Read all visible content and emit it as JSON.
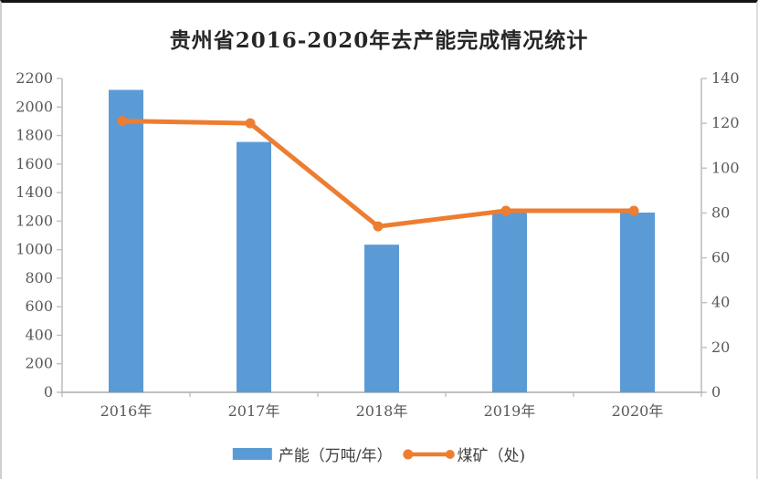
{
  "window": {
    "background": "#ffffff",
    "top_border_color": "#141414"
  },
  "chart_data": {
    "type": "bar+line",
    "title": "贵州省2016-2020年去产能完成情况统计",
    "categories": [
      "2016年",
      "2017年",
      "2018年",
      "2019年",
      "2020年"
    ],
    "series": [
      {
        "name": "产能（万吨/年）",
        "type": "bar",
        "axis": "left",
        "color": "#5B9BD5",
        "values": [
          2120,
          1755,
          1035,
          1270,
          1260
        ]
      },
      {
        "name": "煤矿（处)",
        "type": "line",
        "axis": "right",
        "color": "#ED7D31",
        "values": [
          121,
          120,
          74,
          81,
          81
        ]
      }
    ],
    "left_axis": {
      "min": 0,
      "max": 2200,
      "step": 200,
      "tick_labels": [
        "0",
        "200",
        "400",
        "600",
        "800",
        "1000",
        "1200",
        "1400",
        "1600",
        "1800",
        "2000",
        "2200"
      ]
    },
    "right_axis": {
      "min": 0,
      "max": 140,
      "step": 20,
      "tick_labels": [
        "0",
        "20",
        "40",
        "60",
        "80",
        "100",
        "120",
        "140"
      ]
    },
    "legend_position": "bottom",
    "grid": false,
    "axis_line_color": "#BFBFBF",
    "tick_label_color": "#595959"
  }
}
